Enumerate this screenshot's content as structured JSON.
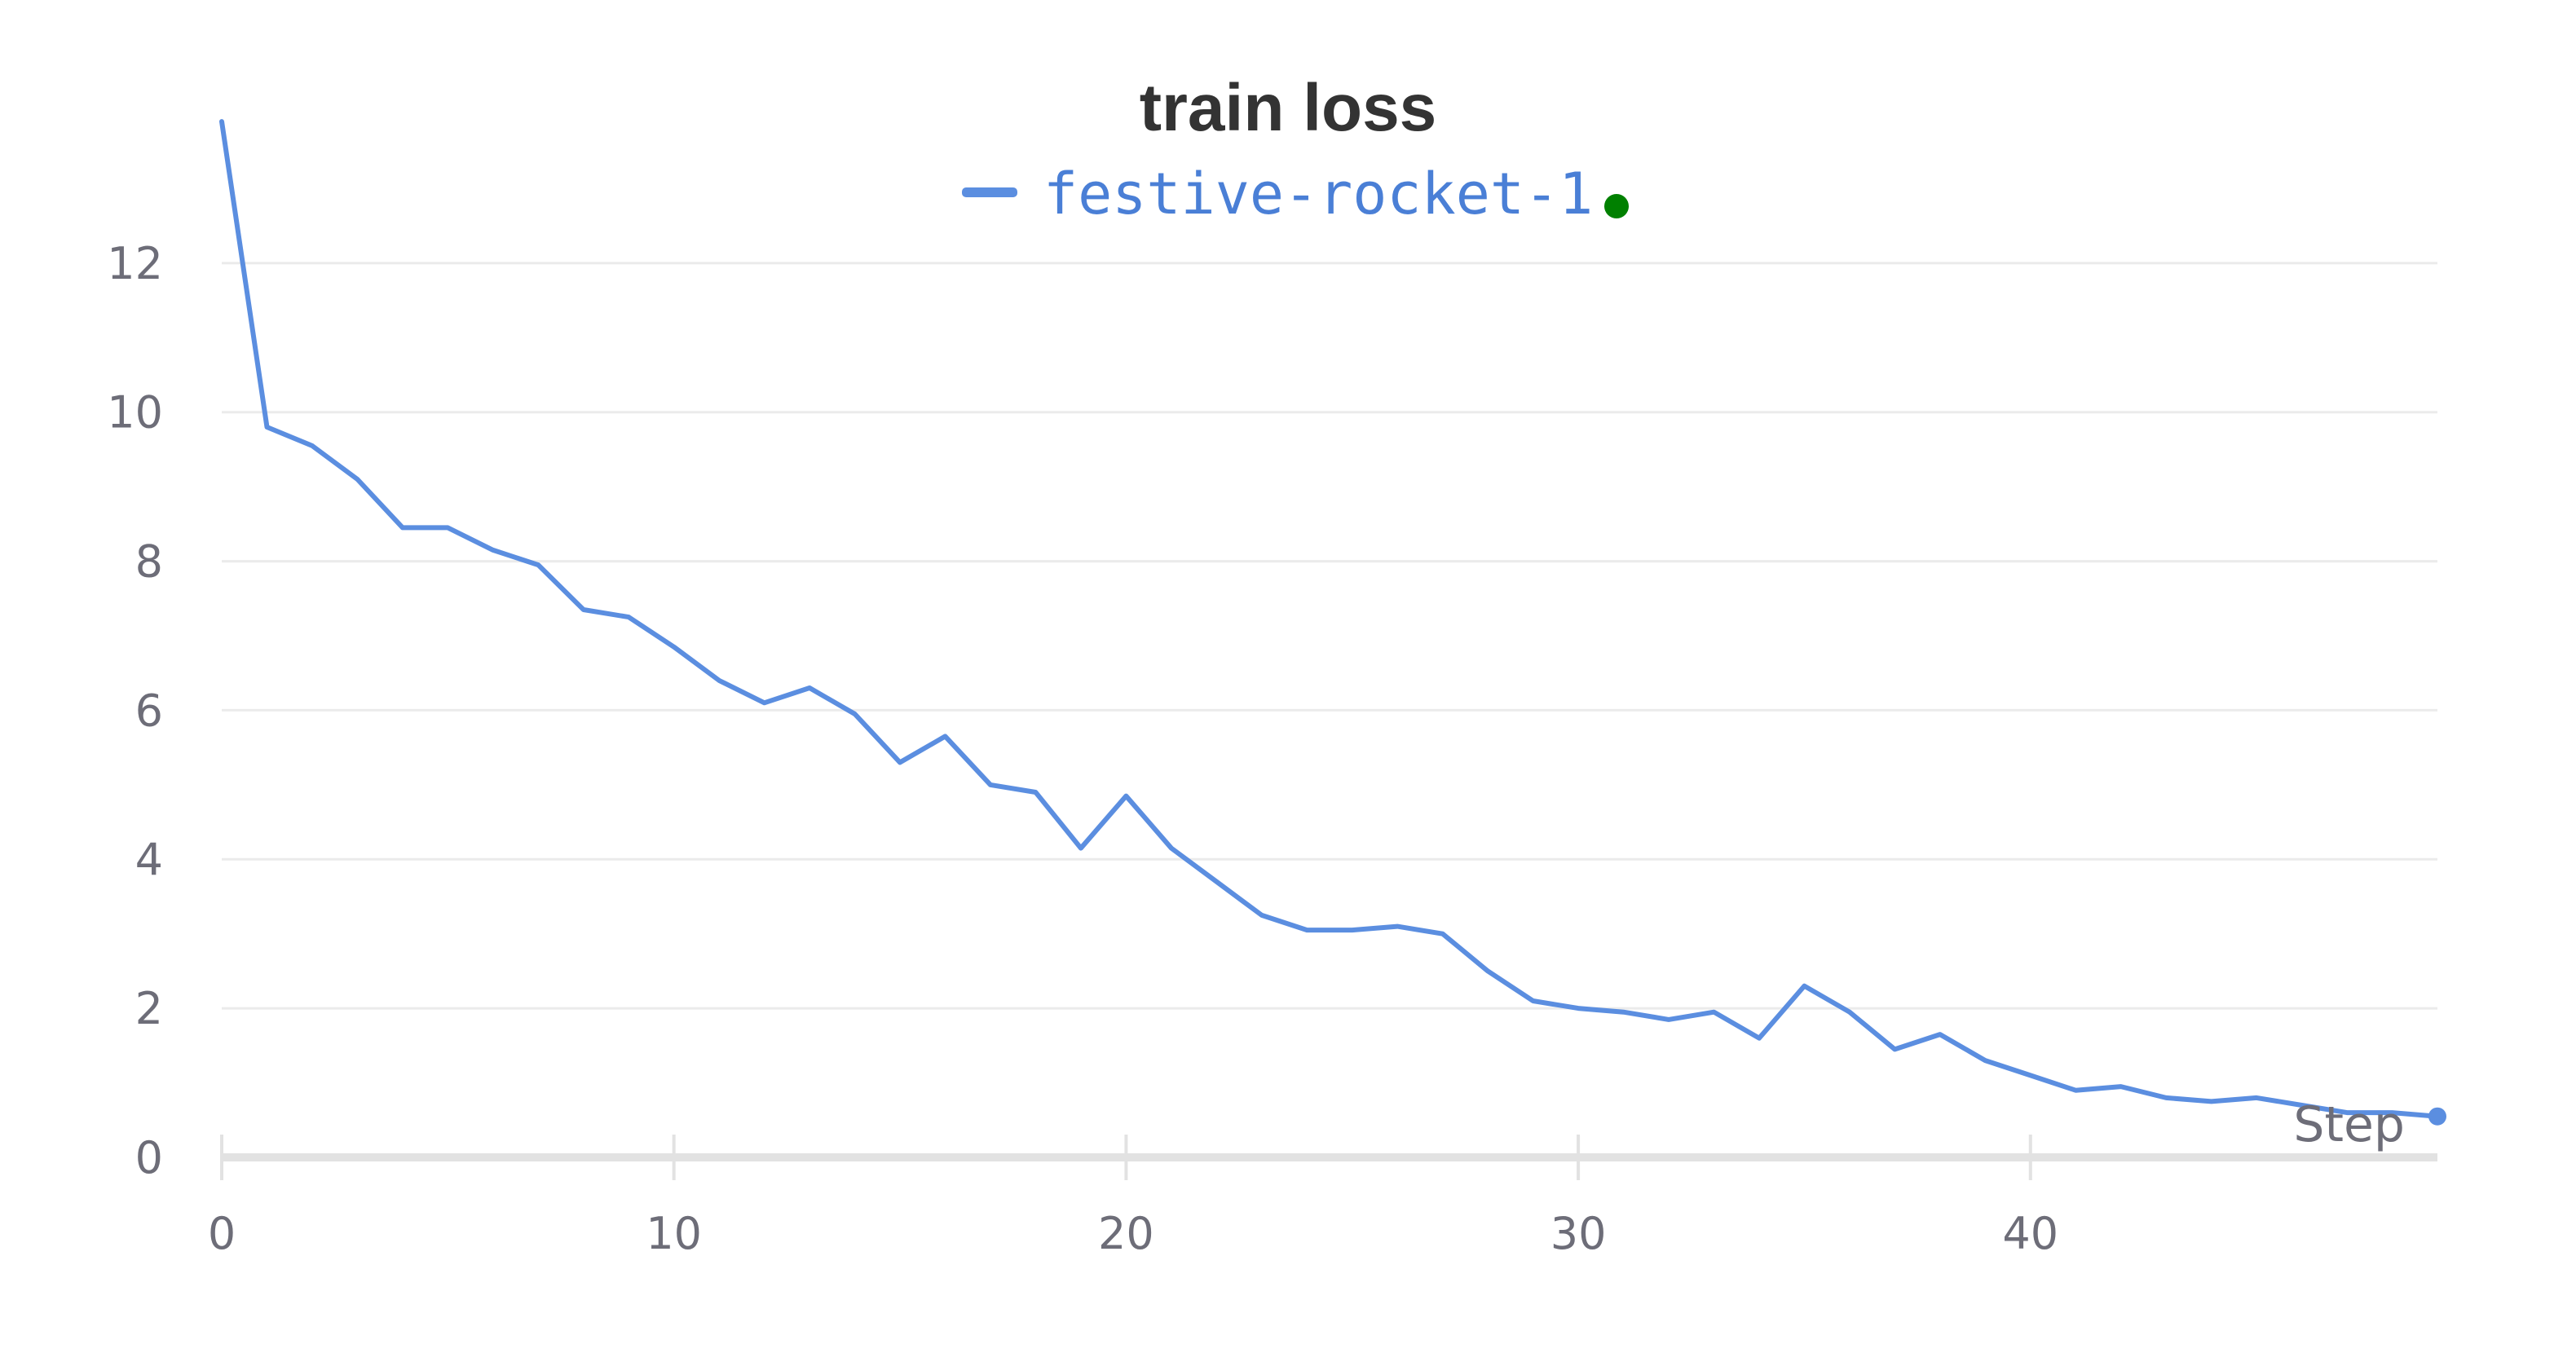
{
  "chart_data": {
    "type": "line",
    "title": "train loss",
    "xlabel": "Step",
    "ylabel": "",
    "xlim": [
      0,
      49
    ],
    "ylim": [
      0,
      14
    ],
    "x_ticks": [
      0,
      10,
      20,
      30,
      40
    ],
    "y_ticks": [
      0,
      2,
      4,
      6,
      8,
      10,
      12
    ],
    "grid": "horizontal",
    "legend_position": "top-center",
    "colors": {
      "series": "#5b8ee0",
      "status_dot": "#008000",
      "axis": "#e2e2e2",
      "grid": "#ebebeb"
    },
    "series": [
      {
        "name": "festive-rocket-1",
        "x": [
          0,
          1,
          2,
          3,
          4,
          5,
          6,
          7,
          8,
          9,
          10,
          11,
          12,
          13,
          14,
          15,
          16,
          17,
          18,
          19,
          20,
          21,
          22,
          23,
          24,
          25,
          26,
          27,
          28,
          29,
          30,
          31,
          32,
          33,
          34,
          35,
          36,
          37,
          38,
          39,
          40,
          41,
          42,
          43,
          44,
          45,
          46,
          47,
          48,
          49
        ],
        "y": [
          13.9,
          9.8,
          9.55,
          9.1,
          8.45,
          8.45,
          8.15,
          7.95,
          7.35,
          7.25,
          6.85,
          6.4,
          6.1,
          6.3,
          5.95,
          5.3,
          5.65,
          5.0,
          4.9,
          4.15,
          4.85,
          4.15,
          3.7,
          3.25,
          3.05,
          3.05,
          3.1,
          3.0,
          2.5,
          2.1,
          2.0,
          1.95,
          1.85,
          1.95,
          1.6,
          2.3,
          1.95,
          1.45,
          1.65,
          1.3,
          1.1,
          0.9,
          0.95,
          0.8,
          0.75,
          0.8,
          0.7,
          0.6,
          0.6,
          0.55
        ]
      }
    ]
  }
}
